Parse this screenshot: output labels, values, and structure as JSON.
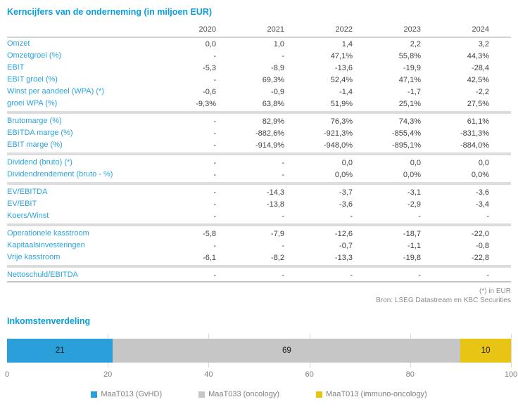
{
  "page_title": "Kerncijfers van de onderneming (in miljoen EUR)",
  "colors": {
    "accent_blue": "#0a9fdc",
    "value_text": "#3f3f3f",
    "separator_gray": "#dcdcdc",
    "bar_blue": "#2b9fd9",
    "bar_gray": "#c6c6c6",
    "bar_yellow": "#e8c414"
  },
  "table": {
    "years": [
      "2020",
      "2021",
      "2022",
      "2023",
      "2024"
    ],
    "rows": [
      {
        "label": "Omzet",
        "values": [
          "0,0",
          "1,0",
          "1,4",
          "2,2",
          "3,2"
        ]
      },
      {
        "label": "Omzetgroei (%)",
        "values": [
          "-",
          "-",
          "47,1%",
          "55,8%",
          "44,3%"
        ]
      },
      {
        "label": "EBIT",
        "values": [
          "-5,3",
          "-8,9",
          "-13,6",
          "-19,9",
          "-28,4"
        ]
      },
      {
        "label": "EBIT groei (%)",
        "values": [
          "-",
          "69,3%",
          "52,4%",
          "47,1%",
          "42,5%"
        ]
      },
      {
        "label": "Winst per aandeel (WPA) (*)",
        "values": [
          "-0,6",
          "-0,9",
          "-1,4",
          "-1,7",
          "-2,2"
        ]
      },
      {
        "label": "groei WPA (%)",
        "values": [
          "-9,3%",
          "63,8%",
          "51,9%",
          "25,1%",
          "27,5%"
        ]
      },
      {
        "label": "Brutomarge (%)",
        "values": [
          "-",
          "82,9%",
          "76,3%",
          "74,3%",
          "61,1%"
        ]
      },
      {
        "label": "EBITDA marge (%)",
        "values": [
          "-",
          "-882,6%",
          "-921,3%",
          "-855,4%",
          "-831,3%"
        ]
      },
      {
        "label": "EBIT marge (%)",
        "values": [
          "-",
          "-914,9%",
          "-948,0%",
          "-895,1%",
          "-884,0%"
        ]
      },
      {
        "label": "Dividend (bruto) (*)",
        "values": [
          "-",
          "-",
          "0,0",
          "0,0",
          "0,0"
        ]
      },
      {
        "label": "Dividendrendement (bruto - %)",
        "values": [
          "-",
          "-",
          "0,0%",
          "0,0%",
          "0,0%"
        ]
      },
      {
        "label": "EV/EBITDA",
        "values": [
          "-",
          "-14,3",
          "-3,7",
          "-3,1",
          "-3,6"
        ]
      },
      {
        "label": "EV/EBIT",
        "values": [
          "-",
          "-13,8",
          "-3,6",
          "-2,9",
          "-3,4"
        ]
      },
      {
        "label": "Koers/Winst",
        "values": [
          "-",
          "-",
          "-",
          "-",
          "-"
        ]
      },
      {
        "label": "Operationele kasstroom",
        "values": [
          "-5,8",
          "-7,9",
          "-12,6",
          "-18,7",
          "-22,0"
        ]
      },
      {
        "label": "Kapitaalsinvesteringen",
        "values": [
          "-",
          "-",
          "-0,7",
          "-1,1",
          "-0,8"
        ]
      },
      {
        "label": "Vrije kasstroom",
        "values": [
          "-6,1",
          "-8,2",
          "-13,3",
          "-19,8",
          "-22,8"
        ]
      },
      {
        "label": "Nettoschuld/EBITDA",
        "values": [
          "-",
          "-",
          "-",
          "-",
          "-"
        ]
      }
    ],
    "footnotes": [
      "(*) in EUR",
      "Bron: LSEG Datastream en KBC Securities"
    ]
  },
  "chart_section_title": "Inkomstenverdeling",
  "chart_data": {
    "type": "bar",
    "subtype": "horizontal-stacked",
    "title": "Inkomstenverdeling",
    "series": [
      {
        "name": "MaaT013 (GvHD)",
        "value": 21,
        "color": "#2b9fd9"
      },
      {
        "name": "MaaT033 (oncology)",
        "value": 69,
        "color": "#c6c6c6"
      },
      {
        "name": "MaaT013 (immuno-oncology)",
        "value": 10,
        "color": "#e8c414"
      }
    ],
    "xlim": [
      0,
      100
    ],
    "x_ticks": [
      0,
      20,
      40,
      60,
      80,
      100
    ],
    "grid": "vertical-light",
    "legend_position": "bottom"
  }
}
